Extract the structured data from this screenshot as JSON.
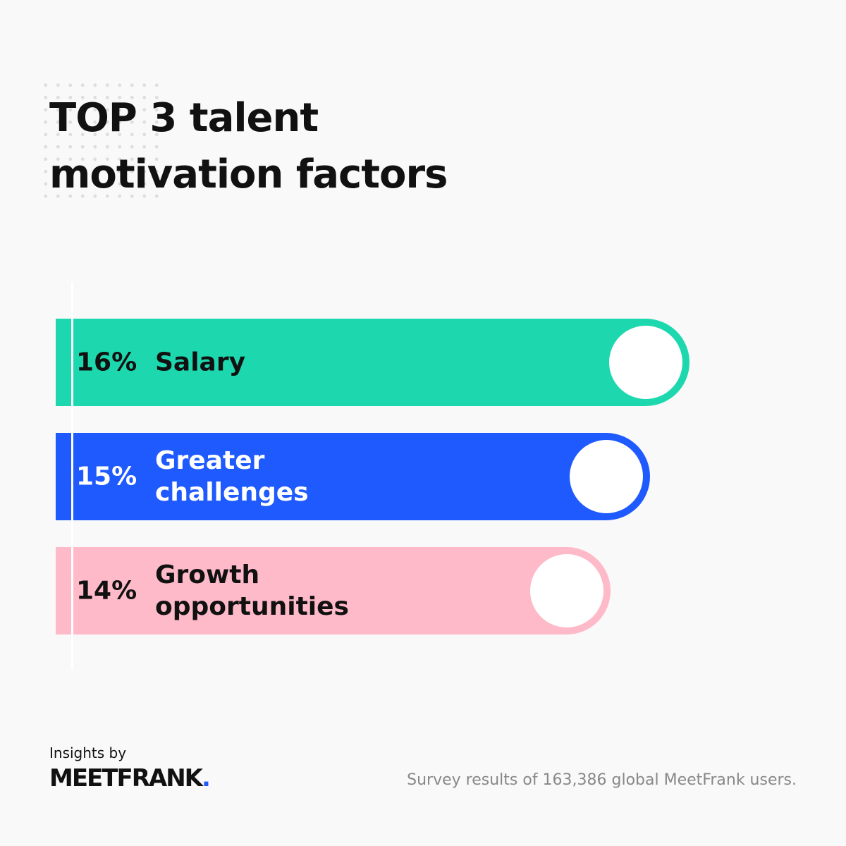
{
  "chart_data": {
    "type": "bar",
    "orientation": "horizontal",
    "title": "TOP 3 talent motivation factors",
    "categories": [
      "Salary",
      "Greater challenges",
      "Growth opportunities"
    ],
    "values": [
      16,
      15,
      14
    ],
    "value_labels": [
      "16%",
      "15%",
      "14%"
    ],
    "colors": [
      "#1dd8ae",
      "#1f5afe",
      "#ffbac9"
    ],
    "label_colors": [
      "#111111",
      "#ffffff",
      "#111111"
    ],
    "brand_prefix": "Insights by",
    "brand_name": "MEETFRANK",
    "brand_dot": ".",
    "source": "Survey results of 163,386 global MeetFrank users."
  }
}
